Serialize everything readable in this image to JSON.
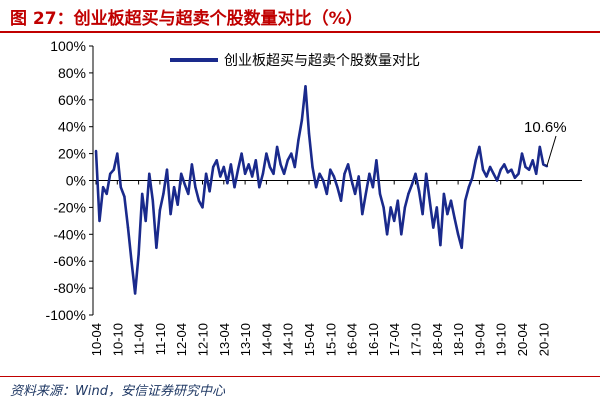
{
  "header": {
    "title": "图 27：创业板超买与超卖个股数量对比（%）"
  },
  "footer": {
    "source": "资料来源：Wind，安信证券研究中心"
  },
  "colors": {
    "title": "#c00000",
    "series": "#1a2a8c",
    "source": "#1f3864"
  },
  "chart_data": {
    "type": "line",
    "ylim": [
      -100,
      100
    ],
    "yticks": [
      100,
      80,
      60,
      40,
      20,
      0,
      -20,
      -40,
      -60,
      -80,
      -100
    ],
    "ytick_labels": [
      "100%",
      "80%",
      "60%",
      "40%",
      "20%",
      "0%",
      "-20%",
      "-40%",
      "-60%",
      "-80%",
      "-100%"
    ],
    "xtick_labels": [
      "10-04",
      "10-10",
      "11-04",
      "11-10",
      "12-04",
      "12-10",
      "13-04",
      "13-10",
      "14-04",
      "14-10",
      "15-04",
      "15-10",
      "16-04",
      "16-10",
      "17-04",
      "17-10",
      "18-04",
      "18-10",
      "19-04",
      "19-10",
      "20-04",
      "20-10"
    ],
    "legend_position": "top",
    "grid": false,
    "annotation": {
      "text": "10.6%",
      "x": "20-11",
      "y": 10.6
    },
    "series": [
      {
        "name": "创业板超买与超卖个股数量对比",
        "x": [
          "10-04",
          "10-05",
          "10-06",
          "10-07",
          "10-08",
          "10-09",
          "10-10",
          "10-11",
          "10-12",
          "11-01",
          "11-02",
          "11-03",
          "11-04",
          "11-05",
          "11-06",
          "11-07",
          "11-08",
          "11-09",
          "11-10",
          "11-11",
          "11-12",
          "12-01",
          "12-02",
          "12-03",
          "12-04",
          "12-05",
          "12-06",
          "12-07",
          "12-08",
          "12-09",
          "12-10",
          "12-11",
          "12-12",
          "13-01",
          "13-02",
          "13-03",
          "13-04",
          "13-05",
          "13-06",
          "13-07",
          "13-08",
          "13-09",
          "13-10",
          "13-11",
          "13-12",
          "14-01",
          "14-02",
          "14-03",
          "14-04",
          "14-05",
          "14-06",
          "14-07",
          "14-08",
          "14-09",
          "14-10",
          "14-11",
          "14-12",
          "15-01",
          "15-02",
          "15-03",
          "15-04",
          "15-05",
          "15-06",
          "15-07",
          "15-08",
          "15-09",
          "15-10",
          "15-11",
          "15-12",
          "16-01",
          "16-02",
          "16-03",
          "16-04",
          "16-05",
          "16-06",
          "16-07",
          "16-08",
          "16-09",
          "16-10",
          "16-11",
          "16-12",
          "17-01",
          "17-02",
          "17-03",
          "17-04",
          "17-05",
          "17-06",
          "17-07",
          "17-08",
          "17-09",
          "17-10",
          "17-11",
          "17-12",
          "18-01",
          "18-02",
          "18-03",
          "18-04",
          "18-05",
          "18-06",
          "18-07",
          "18-08",
          "18-09",
          "18-10",
          "18-11",
          "18-12",
          "19-01",
          "19-02",
          "19-03",
          "19-04",
          "19-05",
          "19-06",
          "19-07",
          "19-08",
          "19-09",
          "19-10",
          "19-11",
          "19-12",
          "20-01",
          "20-02",
          "20-03",
          "20-04",
          "20-05",
          "20-06",
          "20-07",
          "20-08",
          "20-09",
          "20-10",
          "20-11"
        ],
        "values": [
          22,
          -30,
          -5,
          -10,
          5,
          8,
          20,
          -5,
          -12,
          -35,
          -60,
          -84,
          -55,
          -10,
          -30,
          5,
          -15,
          -50,
          -22,
          -10,
          8,
          -25,
          -5,
          -18,
          5,
          -3,
          -10,
          12,
          -5,
          -15,
          -20,
          5,
          -8,
          10,
          15,
          3,
          10,
          -2,
          12,
          -5,
          8,
          20,
          5,
          12,
          3,
          15,
          -5,
          5,
          20,
          10,
          5,
          25,
          12,
          5,
          15,
          20,
          10,
          30,
          45,
          70,
          35,
          10,
          -5,
          5,
          0,
          -10,
          8,
          3,
          -5,
          -15,
          5,
          12,
          0,
          -10,
          3,
          -25,
          -10,
          5,
          -5,
          15,
          -10,
          -20,
          -40,
          -20,
          -30,
          -15,
          -40,
          -20,
          -10,
          -3,
          5,
          -8,
          -25,
          5,
          -15,
          -35,
          -20,
          -48,
          -10,
          -25,
          -15,
          -28,
          -40,
          -50,
          -15,
          -5,
          2,
          15,
          25,
          8,
          3,
          10,
          5,
          0,
          8,
          12,
          6,
          8,
          2,
          5,
          20,
          10,
          8,
          15,
          5,
          25,
          12,
          10.6
        ]
      }
    ]
  }
}
